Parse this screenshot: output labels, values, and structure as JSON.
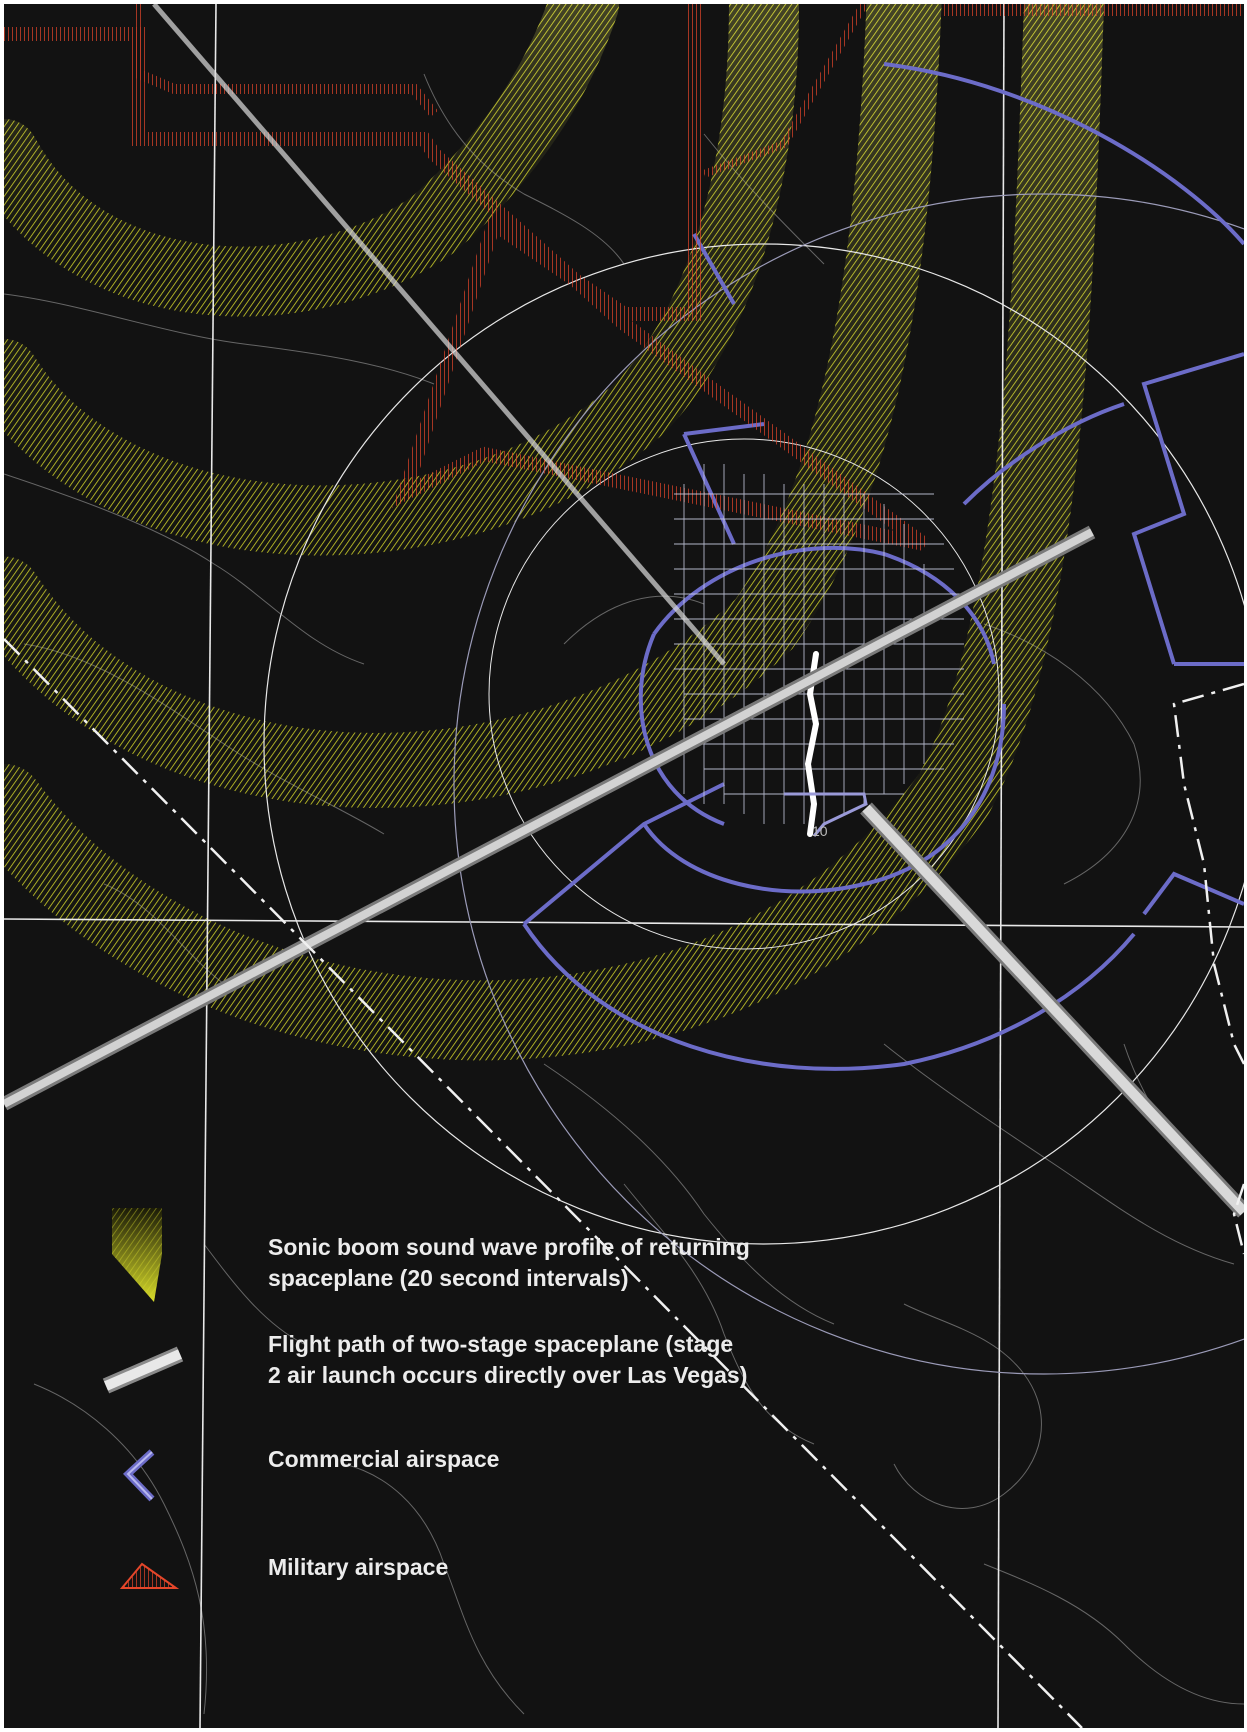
{
  "legend": {
    "sonic_boom": {
      "line1": "Sonic boom sound wave profile of returning",
      "line2": "spaceplane (20 second intervals)",
      "color": "#d8dc2a",
      "icon": "yellow-wedge-swatch"
    },
    "flight_path": {
      "line1": "Flight path of two-stage spaceplane (stage",
      "line2": "2 air launch occurs directly over Las Vegas)",
      "color": "#d9d9d9",
      "icon": "grey-bar-swatch"
    },
    "commercial": {
      "label": "Commercial airspace",
      "color": "#6c6cc8",
      "icon": "blue-chevron-swatch"
    },
    "military": {
      "label": "Military airspace",
      "color": "#e2482c",
      "icon": "red-triangle-swatch"
    }
  },
  "map_labels": {
    "runway_number": "10"
  },
  "colors": {
    "background": "#121212",
    "contour": "#8a8a8a",
    "grid_line": "#e8e8e8",
    "boundary_line": "#f0f0f0"
  }
}
